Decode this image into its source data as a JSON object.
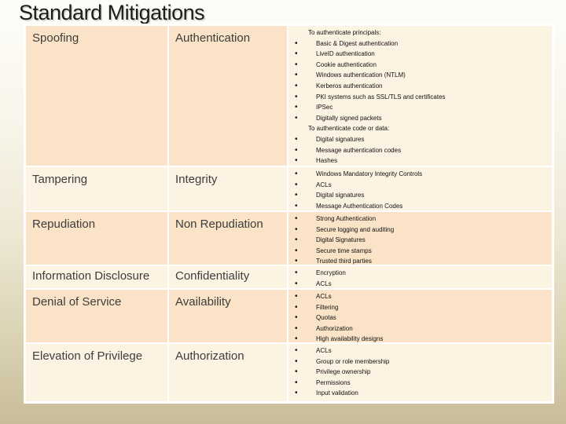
{
  "title": "Standard Mitigations",
  "colors": {
    "band_dark": "#fae3c6",
    "band_light": "#fdf3e3",
    "table_border": "#ffffff",
    "background_bottom": "#c8bd99",
    "title_text": "#1c1c1c"
  },
  "table": {
    "rows": [
      {
        "threat": "Spoofing",
        "mitigation": "Authentication",
        "details": [
          {
            "bullet": false,
            "text": "To authenticate principals:"
          },
          {
            "bullet": true,
            "text": "Basic & Digest authentication"
          },
          {
            "bullet": true,
            "text": "LiveID authentication"
          },
          {
            "bullet": true,
            "text": "Cookie authentication"
          },
          {
            "bullet": true,
            "text": "Windows authentication (NTLM)"
          },
          {
            "bullet": true,
            "text": "Kerberos authentication"
          },
          {
            "bullet": true,
            "text": "PKI systems such as SSL/TLS and certificates"
          },
          {
            "bullet": true,
            "text": "IPSec"
          },
          {
            "bullet": true,
            "text": "Digitally signed packets"
          },
          {
            "bullet": false,
            "text": "To authenticate code or data:"
          },
          {
            "bullet": true,
            "text": "Digital signatures"
          },
          {
            "bullet": true,
            "text": "Message authentication codes"
          },
          {
            "bullet": true,
            "text": "Hashes"
          }
        ]
      },
      {
        "threat": "Tampering",
        "mitigation": "Integrity",
        "details": [
          {
            "bullet": true,
            "text": "Windows Mandatory Integrity Controls"
          },
          {
            "bullet": true,
            "text": "ACLs"
          },
          {
            "bullet": true,
            "text": "Digital signatures"
          },
          {
            "bullet": true,
            "text": "Message Authentication Codes"
          }
        ]
      },
      {
        "threat": "Repudiation",
        "mitigation": "Non Repudiation",
        "details": [
          {
            "bullet": true,
            "text": "Strong Authentication"
          },
          {
            "bullet": true,
            "text": "Secure logging and auditing"
          },
          {
            "bullet": true,
            "text": "Digital Signatures"
          },
          {
            "bullet": true,
            "text": "Secure time stamps"
          },
          {
            "bullet": true,
            "text": "Trusted third parties"
          }
        ]
      },
      {
        "threat": "Information Disclosure",
        "mitigation": "Confidentiality",
        "details": [
          {
            "bullet": true,
            "text": "Encryption"
          },
          {
            "bullet": true,
            "text": "ACLs"
          }
        ]
      },
      {
        "threat": "Denial of Service",
        "mitigation": "Availability",
        "details": [
          {
            "bullet": true,
            "text": "ACLs"
          },
          {
            "bullet": true,
            "text": "Filtering"
          },
          {
            "bullet": true,
            "text": "Quotas"
          },
          {
            "bullet": true,
            "text": "Authorization"
          },
          {
            "bullet": true,
            "text": "High availability designs"
          }
        ]
      },
      {
        "threat": "Elevation of Privilege",
        "mitigation": "Authorization",
        "details": [
          {
            "bullet": true,
            "text": "ACLs"
          },
          {
            "bullet": true,
            "text": "Group or role membership"
          },
          {
            "bullet": true,
            "text": "Privilege ownership"
          },
          {
            "bullet": true,
            "text": "Permissions"
          },
          {
            "bullet": true,
            "text": "Input validation"
          }
        ]
      }
    ]
  }
}
